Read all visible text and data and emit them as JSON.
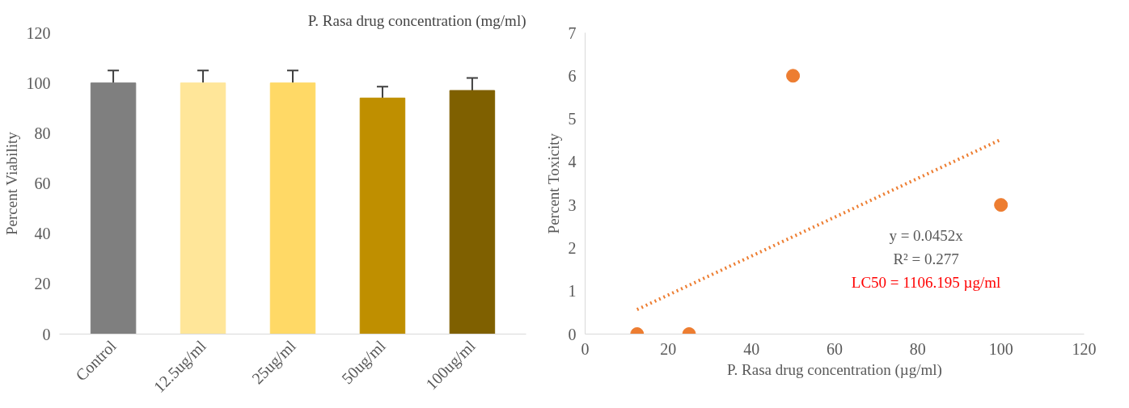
{
  "chart_data": [
    {
      "type": "bar",
      "title": "P. Rasa drug concentration (mg/ml)",
      "ylabel": "Percent Viability",
      "categories": [
        "Control",
        "12.5ug/ml",
        "25ug/ml",
        "50ug/ml",
        "100ug/ml"
      ],
      "values": [
        100,
        100,
        100,
        94,
        97
      ],
      "errors": [
        5,
        5,
        5,
        4.5,
        5
      ],
      "colors": [
        "#7f7f7f",
        "#ffe699",
        "#ffd966",
        "#bf8f00",
        "#7f6000"
      ],
      "ylim": [
        0,
        120
      ],
      "yticks": [
        0,
        20,
        40,
        60,
        80,
        100,
        120
      ],
      "grid": false
    },
    {
      "type": "scatter",
      "xlabel": "P. Rasa drug concentration (µg/ml)",
      "ylabel": "Percent Toxicity",
      "xlim": [
        0,
        120
      ],
      "xticks": [
        0,
        20,
        40,
        60,
        80,
        100,
        120
      ],
      "ylim": [
        0,
        7
      ],
      "yticks": [
        0,
        1,
        2,
        3,
        4,
        5,
        6,
        7
      ],
      "grid": false,
      "series": [
        {
          "color": "#ed7d31",
          "marker": "circle",
          "x": [
            12.5,
            25,
            50,
            100
          ],
          "values": [
            0,
            0,
            6,
            3
          ]
        },
        {
          "type": "line",
          "line_style": "dotted",
          "color": "#ed7d31",
          "x": [
            12.5,
            100
          ],
          "values": [
            0.57,
            4.52
          ]
        }
      ],
      "annotations": [
        "y = 0.0452x",
        "R² = 0.277",
        "LC50 = 1106.195 µg/ml"
      ]
    }
  ]
}
